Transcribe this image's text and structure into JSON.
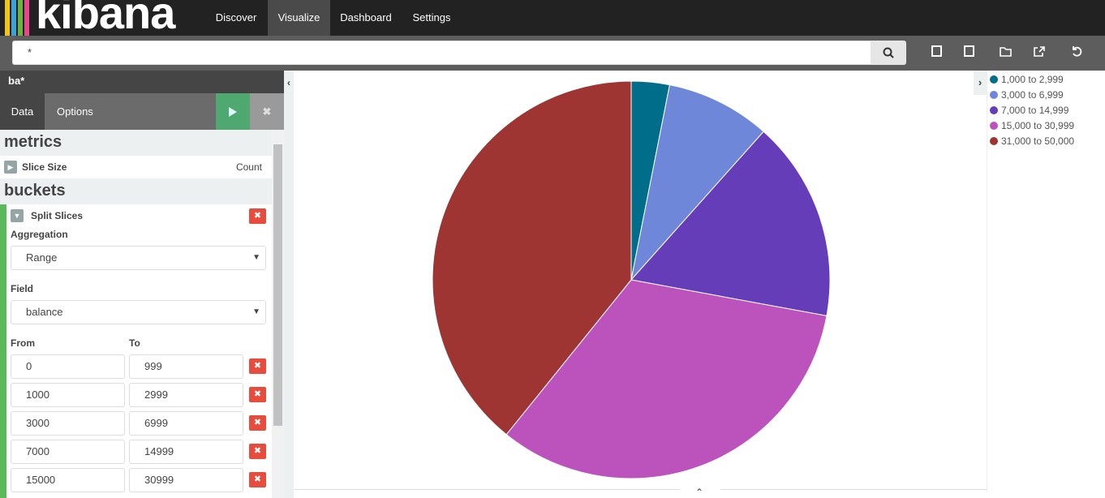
{
  "nav": {
    "brand": "kibana",
    "items": [
      "Discover",
      "Visualize",
      "Dashboard",
      "Settings"
    ]
  },
  "search": {
    "query": "*"
  },
  "editor": {
    "index": "ba*",
    "tabs": [
      "Data",
      "Options"
    ],
    "metrics": {
      "heading": "metrics",
      "label": "Slice Size",
      "value": "Count"
    },
    "buckets": {
      "heading": "buckets",
      "label": "Split Slices",
      "aggregation_label": "Aggregation",
      "aggregation": "Range",
      "field_label": "Field",
      "field": "balance",
      "from_label": "From",
      "to_label": "To",
      "ranges": [
        [
          0,
          999
        ],
        [
          1000,
          2999
        ],
        [
          3000,
          6999
        ],
        [
          7000,
          14999
        ],
        [
          15000,
          30999
        ]
      ]
    }
  },
  "chart_data": {
    "type": "pie",
    "categories": [
      "1,000 to 2,999",
      "3,000 to 6,999",
      "7,000 to 14,999",
      "15,000 to 30,999",
      "31,000 to 50,000"
    ],
    "values": [
      3.1,
      8.5,
      16.3,
      32.9,
      39.2
    ],
    "colors": [
      "#006e8a",
      "#6f87d8",
      "#663db8",
      "#bc52bc",
      "#9e3533"
    ]
  }
}
